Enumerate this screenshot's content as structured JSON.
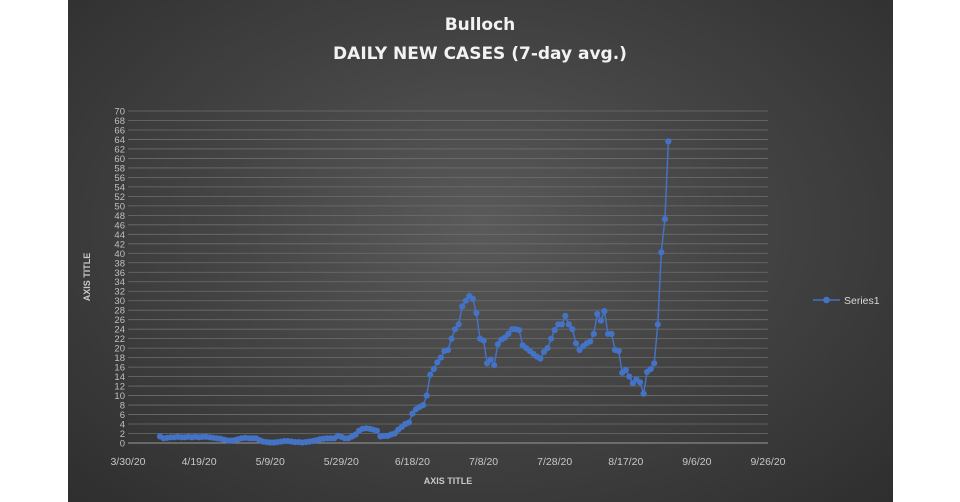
{
  "chart_data": {
    "type": "line",
    "title": "Bulloch",
    "subtitle": "DAILY NEW CASES (7-day avg.)",
    "xlabel": "AXIS TITLE",
    "ylabel": "AXIS TITLE",
    "x_start": "2020-03-30",
    "x_tick_labels": [
      "3/30/20",
      "4/19/20",
      "5/9/20",
      "5/29/20",
      "6/18/20",
      "7/8/20",
      "7/28/20",
      "8/17/20",
      "9/6/20",
      "9/26/20"
    ],
    "xlim": [
      "2020-03-30",
      "2020-09-26"
    ],
    "ylim": [
      0,
      70
    ],
    "ytick_step": 2,
    "grid": true,
    "legend": "right",
    "line_color": "#4472c4",
    "series": [
      {
        "name": "Series1",
        "points": [
          [
            "2020-04-08",
            1.4
          ],
          [
            "2020-04-09",
            1.0
          ],
          [
            "2020-04-10",
            1.1
          ],
          [
            "2020-04-11",
            1.2
          ],
          [
            "2020-04-12",
            1.2
          ],
          [
            "2020-04-13",
            1.3
          ],
          [
            "2020-04-14",
            1.2
          ],
          [
            "2020-04-15",
            1.2
          ],
          [
            "2020-04-16",
            1.3
          ],
          [
            "2020-04-17",
            1.2
          ],
          [
            "2020-04-18",
            1.3
          ],
          [
            "2020-04-19",
            1.2
          ],
          [
            "2020-04-20",
            1.3
          ],
          [
            "2020-04-21",
            1.3
          ],
          [
            "2020-04-22",
            1.2
          ],
          [
            "2020-04-23",
            1.1
          ],
          [
            "2020-04-24",
            1.0
          ],
          [
            "2020-04-25",
            0.9
          ],
          [
            "2020-04-26",
            0.7
          ],
          [
            "2020-04-27",
            0.5
          ],
          [
            "2020-04-28",
            0.5
          ],
          [
            "2020-04-29",
            0.6
          ],
          [
            "2020-04-30",
            0.8
          ],
          [
            "2020-05-01",
            1.0
          ],
          [
            "2020-05-02",
            1.1
          ],
          [
            "2020-05-03",
            1.0
          ],
          [
            "2020-05-04",
            1.0
          ],
          [
            "2020-05-05",
            1.0
          ],
          [
            "2020-05-06",
            0.6
          ],
          [
            "2020-05-07",
            0.3
          ],
          [
            "2020-05-08",
            0.2
          ],
          [
            "2020-05-09",
            0.1
          ],
          [
            "2020-05-10",
            0.1
          ],
          [
            "2020-05-11",
            0.2
          ],
          [
            "2020-05-12",
            0.3
          ],
          [
            "2020-05-13",
            0.4
          ],
          [
            "2020-05-14",
            0.4
          ],
          [
            "2020-05-15",
            0.3
          ],
          [
            "2020-05-16",
            0.2
          ],
          [
            "2020-05-17",
            0.2
          ],
          [
            "2020-05-18",
            0.1
          ],
          [
            "2020-05-19",
            0.2
          ],
          [
            "2020-05-20",
            0.3
          ],
          [
            "2020-05-21",
            0.4
          ],
          [
            "2020-05-22",
            0.6
          ],
          [
            "2020-05-23",
            0.8
          ],
          [
            "2020-05-24",
            0.9
          ],
          [
            "2020-05-25",
            1.0
          ],
          [
            "2020-05-26",
            1.0
          ],
          [
            "2020-05-27",
            1.0
          ],
          [
            "2020-05-28",
            1.5
          ],
          [
            "2020-05-29",
            1.3
          ],
          [
            "2020-05-30",
            1.0
          ],
          [
            "2020-05-31",
            1.0
          ],
          [
            "2020-06-01",
            1.4
          ],
          [
            "2020-06-02",
            1.8
          ],
          [
            "2020-06-03",
            2.6
          ],
          [
            "2020-06-04",
            3.0
          ],
          [
            "2020-06-05",
            3.1
          ],
          [
            "2020-06-06",
            3.0
          ],
          [
            "2020-06-07",
            2.8
          ],
          [
            "2020-06-08",
            2.6
          ],
          [
            "2020-06-09",
            1.4
          ],
          [
            "2020-06-10",
            1.5
          ],
          [
            "2020-06-11",
            1.5
          ],
          [
            "2020-06-12",
            1.8
          ],
          [
            "2020-06-13",
            2.0
          ],
          [
            "2020-06-14",
            2.8
          ],
          [
            "2020-06-15",
            3.4
          ],
          [
            "2020-06-16",
            4.0
          ],
          [
            "2020-06-17",
            4.3
          ],
          [
            "2020-06-18",
            6.2
          ],
          [
            "2020-06-19",
            7.1
          ],
          [
            "2020-06-20",
            7.6
          ],
          [
            "2020-06-21",
            8.0
          ],
          [
            "2020-06-22",
            10.0
          ],
          [
            "2020-06-23",
            14.4
          ],
          [
            "2020-06-24",
            15.6
          ],
          [
            "2020-06-25",
            17.0
          ],
          [
            "2020-06-26",
            18.0
          ],
          [
            "2020-06-27",
            19.4
          ],
          [
            "2020-06-28",
            19.6
          ],
          [
            "2020-06-29",
            22.0
          ],
          [
            "2020-06-30",
            24.0
          ],
          [
            "2020-07-01",
            25.0
          ],
          [
            "2020-07-02",
            28.8
          ],
          [
            "2020-07-03",
            30.0
          ],
          [
            "2020-07-04",
            31.0
          ],
          [
            "2020-07-05",
            30.4
          ],
          [
            "2020-07-06",
            27.4
          ],
          [
            "2020-07-07",
            22.0
          ],
          [
            "2020-07-08",
            21.6
          ],
          [
            "2020-07-09",
            16.8
          ],
          [
            "2020-07-10",
            17.6
          ],
          [
            "2020-07-11",
            16.4
          ],
          [
            "2020-07-12",
            20.8
          ],
          [
            "2020-07-13",
            21.8
          ],
          [
            "2020-07-14",
            22.2
          ],
          [
            "2020-07-15",
            23.0
          ],
          [
            "2020-07-16",
            24.0
          ],
          [
            "2020-07-17",
            24.0
          ],
          [
            "2020-07-18",
            23.8
          ],
          [
            "2020-07-19",
            20.6
          ],
          [
            "2020-07-20",
            20.0
          ],
          [
            "2020-07-21",
            19.4
          ],
          [
            "2020-07-22",
            18.8
          ],
          [
            "2020-07-23",
            18.2
          ],
          [
            "2020-07-24",
            17.8
          ],
          [
            "2020-07-25",
            19.2
          ],
          [
            "2020-07-26",
            20.0
          ],
          [
            "2020-07-27",
            22.0
          ],
          [
            "2020-07-28",
            23.8
          ],
          [
            "2020-07-29",
            25.0
          ],
          [
            "2020-07-30",
            25.0
          ],
          [
            "2020-07-31",
            26.8
          ],
          [
            "2020-08-01",
            25.0
          ],
          [
            "2020-08-02",
            24.0
          ],
          [
            "2020-08-03",
            21.0
          ],
          [
            "2020-08-04",
            19.6
          ],
          [
            "2020-08-05",
            20.4
          ],
          [
            "2020-08-06",
            21.0
          ],
          [
            "2020-08-07",
            21.4
          ],
          [
            "2020-08-08",
            23.0
          ],
          [
            "2020-08-09",
            27.2
          ],
          [
            "2020-08-10",
            25.8
          ],
          [
            "2020-08-11",
            27.8
          ],
          [
            "2020-08-12",
            23.0
          ],
          [
            "2020-08-13",
            23.0
          ],
          [
            "2020-08-14",
            19.6
          ],
          [
            "2020-08-15",
            19.4
          ],
          [
            "2020-08-16",
            14.8
          ],
          [
            "2020-08-17",
            15.4
          ],
          [
            "2020-08-18",
            14.0
          ],
          [
            "2020-08-19",
            12.6
          ],
          [
            "2020-08-20",
            13.4
          ],
          [
            "2020-08-21",
            12.8
          ],
          [
            "2020-08-22",
            10.4
          ],
          [
            "2020-08-23",
            15.0
          ],
          [
            "2020-08-24",
            15.6
          ],
          [
            "2020-08-25",
            16.8
          ],
          [
            "2020-08-26",
            25.0
          ],
          [
            "2020-08-27",
            40.2
          ],
          [
            "2020-08-28",
            47.2
          ],
          [
            "2020-08-29",
            63.6
          ]
        ]
      }
    ]
  }
}
